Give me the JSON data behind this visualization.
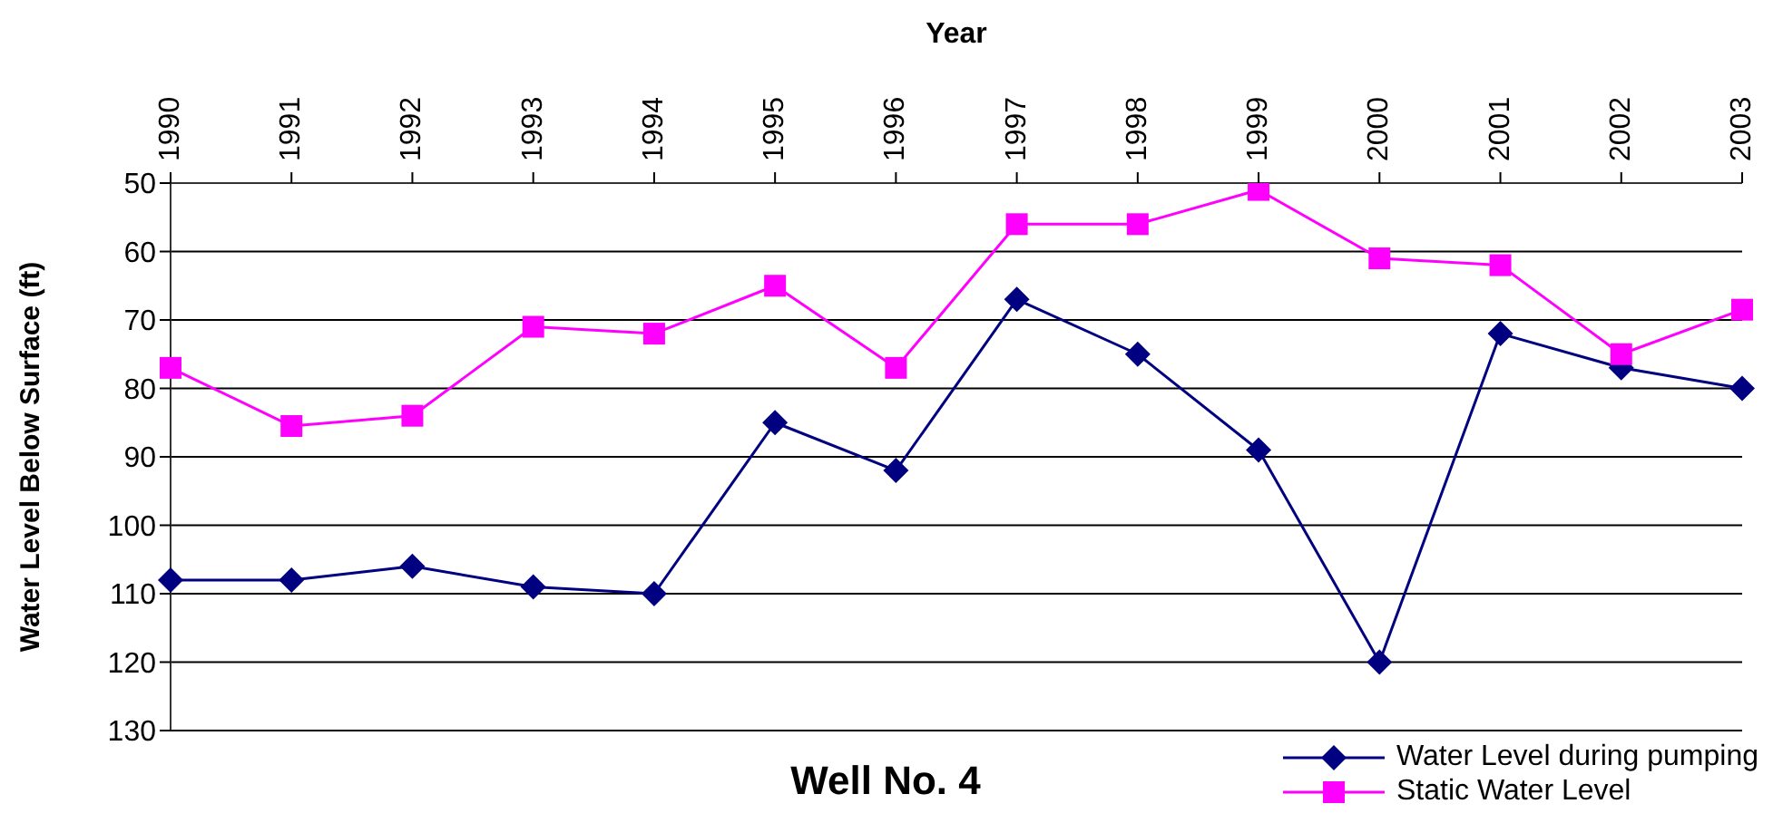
{
  "chart_data": {
    "type": "line",
    "title": "Well No. 4",
    "xlabel": "Year",
    "ylabel": "Water Level Below Surface (ft)",
    "categories": [
      "1990",
      "1991",
      "1992",
      "1993",
      "1994",
      "1995",
      "1996",
      "1997",
      "1998",
      "1999",
      "2000",
      "2001",
      "2002",
      "2003"
    ],
    "series": [
      {
        "name": "Water Level during pumping",
        "color": "#000080",
        "marker": "diamond",
        "values": [
          108,
          108,
          106,
          109,
          110,
          85,
          92,
          67,
          75,
          89,
          120,
          72,
          77,
          80
        ]
      },
      {
        "name": "Static Water Level",
        "color": "#ff00ff",
        "marker": "square",
        "values": [
          77,
          85.5,
          84,
          71,
          72,
          65,
          77,
          56,
          56,
          51,
          61,
          62,
          75,
          68.5
        ]
      }
    ],
    "ylim": [
      130,
      50
    ],
    "yticks": [
      50,
      60,
      70,
      80,
      90,
      100,
      110,
      120,
      130
    ],
    "grid": "y",
    "legend": "bottom right",
    "line_style": "solid"
  }
}
